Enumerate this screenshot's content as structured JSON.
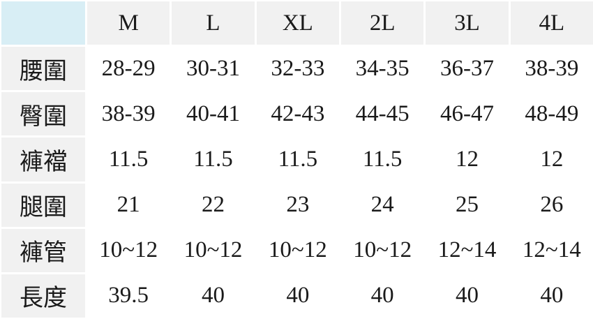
{
  "table": {
    "columns": [
      "M",
      "L",
      "XL",
      "2L",
      "3L",
      "4L"
    ],
    "rows": [
      [
        "腰圍",
        "28-29",
        "30-31",
        "32-33",
        "34-35",
        "36-37",
        "38-39"
      ],
      [
        "臀圍",
        "38-39",
        "40-41",
        "42-43",
        "44-45",
        "46-47",
        "48-49"
      ],
      [
        "褲襠",
        "11.5",
        "11.5",
        "11.5",
        "11.5",
        "12",
        "12"
      ],
      [
        "腿圍",
        "21",
        "22",
        "23",
        "24",
        "25",
        "26"
      ],
      [
        "褲管",
        "10~12",
        "10~12",
        "10~12",
        "10~12",
        "12~14",
        "12~14"
      ],
      [
        "長度",
        "39.5",
        "40",
        "40",
        "40",
        "40",
        "40"
      ]
    ]
  }
}
